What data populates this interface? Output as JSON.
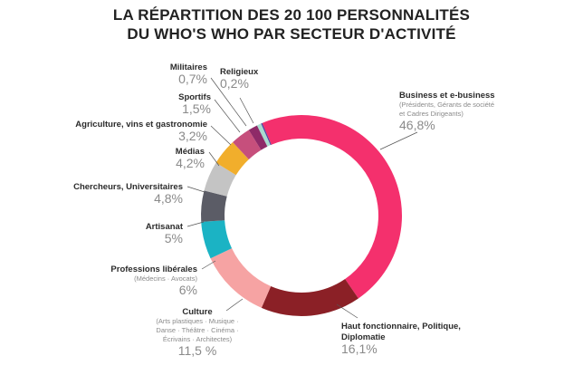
{
  "title": {
    "line1": "LA RÉPARTITION DES 20 100 PERSONNALITÉS",
    "line2": "DU WHO'S WHO PAR SECTEUR D'ACTIVITÉ"
  },
  "chart_data": {
    "type": "pie",
    "donut": true,
    "unit": "%",
    "slices": [
      {
        "name": "Business et e-business",
        "sub": [
          "(Présidents, Gérants de société",
          "et Cadres Dirigeants)"
        ],
        "value": 46.8,
        "display": "46,8%",
        "color": "#f4306d"
      },
      {
        "name": "Haut fonctionnaire, Politique,",
        "name2": "Diplomatie",
        "sub": [],
        "value": 16.1,
        "display": "16,1%",
        "color": "#8b2026"
      },
      {
        "name": "Culture",
        "sub": [
          "(Arts plastiques · Musique ·",
          "Danse · Théâtre · Cinéma ·",
          "Écrivains · Architectes)"
        ],
        "value": 11.5,
        "display": "11,5 %",
        "color": "#f6a3a3"
      },
      {
        "name": "Professions libérales",
        "sub": [
          "(Médecins · Avocats)"
        ],
        "value": 6,
        "display": "6%",
        "color": "#1bb3c4"
      },
      {
        "name": "Artisanat",
        "sub": [],
        "value": 5,
        "display": "5%",
        "color": "#5b5c66"
      },
      {
        "name": "Chercheurs, Universitaires",
        "sub": [],
        "value": 4.8,
        "display": "4,8%",
        "color": "#c4c4c4"
      },
      {
        "name": "Médias",
        "sub": [],
        "value": 4.2,
        "display": "4,2%",
        "color": "#f1ae2c"
      },
      {
        "name": "Agriculture, vins et gastronomie",
        "sub": [],
        "value": 3.2,
        "display": "3,2%",
        "color": "#c64f7c"
      },
      {
        "name": "Sportifs",
        "sub": [],
        "value": 1.5,
        "display": "1,5%",
        "color": "#8e2a68"
      },
      {
        "name": "Militaires",
        "sub": [],
        "value": 0.7,
        "display": "0,7%",
        "color": "#a9dccf"
      },
      {
        "name": "Religieux",
        "sub": [],
        "value": 0.2,
        "display": "0,2%",
        "color": "#4d3fa0"
      }
    ]
  }
}
